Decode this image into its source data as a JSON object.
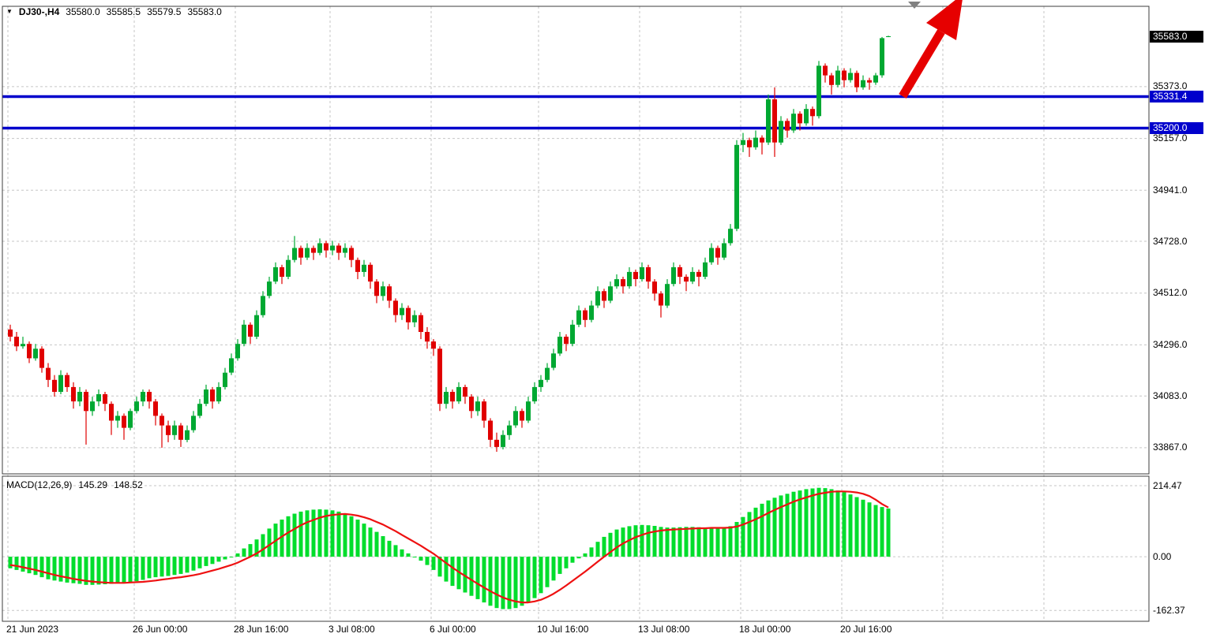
{
  "symbol_bar": {
    "display": "DJ30-,H4",
    "symbol": "DJ30-",
    "timeframe": "H4",
    "open": "35580.0",
    "high": "35585.5",
    "low": "35579.5",
    "close": "35583.0"
  },
  "price_axis": {
    "ticks": [
      35373.0,
      35157.0,
      34941.0,
      34728.0,
      34512.0,
      34296.0,
      34083.0,
      33867.0
    ],
    "current_price": 35583.0,
    "levels": [
      35331.4,
      35200.0
    ]
  },
  "macd_panel": {
    "label": "MACD(12,26,9)",
    "macd_value": "145.29",
    "signal_value": "148.52",
    "ticks": [
      214.47,
      0.0,
      -162.37
    ]
  },
  "time_axis": {
    "ticks": [
      {
        "label": "21 Jun 2023",
        "index": 0
      },
      {
        "label": "26 Jun 00:00",
        "index": 20
      },
      {
        "label": "28 Jun 16:00",
        "index": 36
      },
      {
        "label": "3 Jul 08:00",
        "index": 51
      },
      {
        "label": "6 Jul 00:00",
        "index": 67
      },
      {
        "label": "10 Jul 16:00",
        "index": 84
      },
      {
        "label": "13 Jul 08:00",
        "index": 100
      },
      {
        "label": "18 Jul 00:00",
        "index": 116
      },
      {
        "label": "20 Jul 16:00",
        "index": 132
      },
      {
        "label": "",
        "index": 148
      },
      {
        "label": "",
        "index": 164
      }
    ]
  },
  "colors": {
    "background": "#FFFFFF",
    "grid": "#C6C6C6",
    "frame": "#3C3C3C",
    "bull": "#00A832",
    "bear": "#E00000",
    "histogram": "#00DD2C",
    "signal": "#EE1111",
    "level": "#0000CC",
    "current_bg": "#000000",
    "arrow": "#E60000",
    "marker": "#808080",
    "text": "#000000"
  },
  "chart_data": {
    "type": "candlestick",
    "title": "DJ30-,H4",
    "symbol": "DJ30-",
    "timeframe": "H4",
    "current_price": 35583.0,
    "ohlc_current": {
      "open": 35580.0,
      "high": 35585.5,
      "low": 35579.5,
      "close": 35583.0
    },
    "price_ylim": [
      33758,
      35708
    ],
    "macd_ylim": [
      -195,
      243
    ],
    "hlines": [
      35331.4,
      35200.0
    ],
    "annotations": {
      "trend_arrow": "up-right red arrow at latest candles"
    },
    "candles": [
      [
        34360,
        34380,
        34310,
        34330
      ],
      [
        34330,
        34350,
        34270,
        34290
      ],
      [
        34290,
        34330,
        34280,
        34300
      ],
      [
        34300,
        34310,
        34220,
        34240
      ],
      [
        34240,
        34300,
        34230,
        34280
      ],
      [
        34280,
        34290,
        34180,
        34200
      ],
      [
        34200,
        34220,
        34120,
        34150
      ],
      [
        34150,
        34170,
        34080,
        34100
      ],
      [
        34100,
        34190,
        34090,
        34170
      ],
      [
        34170,
        34180,
        34100,
        34120
      ],
      [
        34120,
        34140,
        34030,
        34060
      ],
      [
        34060,
        34120,
        34040,
        34100
      ],
      [
        34100,
        34110,
        33880,
        34020
      ],
      [
        34020,
        34080,
        34000,
        34060
      ],
      [
        34060,
        34110,
        34040,
        34090
      ],
      [
        34090,
        34100,
        34020,
        34050
      ],
      [
        34050,
        34060,
        33920,
        33980
      ],
      [
        33980,
        34020,
        33950,
        34000
      ],
      [
        34000,
        34010,
        33900,
        33950
      ],
      [
        33950,
        34030,
        33940,
        34020
      ],
      [
        34020,
        34080,
        34010,
        34060
      ],
      [
        34060,
        34110,
        34040,
        34100
      ],
      [
        34100,
        34110,
        34030,
        34060
      ],
      [
        34060,
        34070,
        33960,
        34000
      ],
      [
        34000,
        34010,
        33867,
        33960
      ],
      [
        33960,
        33980,
        33890,
        33920
      ],
      [
        33920,
        33980,
        33900,
        33960
      ],
      [
        33960,
        33970,
        33870,
        33900
      ],
      [
        33900,
        33960,
        33890,
        33940
      ],
      [
        33940,
        34020,
        33930,
        34000
      ],
      [
        34000,
        34070,
        33990,
        34050
      ],
      [
        34050,
        34130,
        34040,
        34110
      ],
      [
        34110,
        34120,
        34030,
        34060
      ],
      [
        34060,
        34140,
        34050,
        34120
      ],
      [
        34120,
        34200,
        34110,
        34180
      ],
      [
        34180,
        34260,
        34170,
        34240
      ],
      [
        34240,
        34320,
        34230,
        34300
      ],
      [
        34300,
        34400,
        34290,
        34380
      ],
      [
        34380,
        34390,
        34300,
        34330
      ],
      [
        34330,
        34440,
        34320,
        34420
      ],
      [
        34420,
        34520,
        34410,
        34500
      ],
      [
        34500,
        34580,
        34490,
        34560
      ],
      [
        34560,
        34640,
        34550,
        34620
      ],
      [
        34620,
        34630,
        34550,
        34580
      ],
      [
        34580,
        34670,
        34570,
        34650
      ],
      [
        34650,
        34750,
        34640,
        34700
      ],
      [
        34700,
        34710,
        34630,
        34660
      ],
      [
        34660,
        34720,
        34650,
        34700
      ],
      [
        34700,
        34710,
        34650,
        34680
      ],
      [
        34680,
        34740,
        34670,
        34720
      ],
      [
        34720,
        34730,
        34660,
        34690
      ],
      [
        34690,
        34730,
        34670,
        34710
      ],
      [
        34710,
        34720,
        34650,
        34680
      ],
      [
        34680,
        34720,
        34660,
        34700
      ],
      [
        34700,
        34710,
        34620,
        34650
      ],
      [
        34650,
        34660,
        34570,
        34600
      ],
      [
        34600,
        34650,
        34580,
        34630
      ],
      [
        34630,
        34640,
        34530,
        34560
      ],
      [
        34560,
        34570,
        34470,
        34500
      ],
      [
        34500,
        34560,
        34480,
        34540
      ],
      [
        34540,
        34550,
        34450,
        34480
      ],
      [
        34480,
        34490,
        34390,
        34420
      ],
      [
        34420,
        34470,
        34400,
        34450
      ],
      [
        34450,
        34460,
        34360,
        34390
      ],
      [
        34390,
        34440,
        34370,
        34420
      ],
      [
        34420,
        34430,
        34320,
        34350
      ],
      [
        34350,
        34370,
        34280,
        34310
      ],
      [
        34310,
        34320,
        34250,
        34280
      ],
      [
        34280,
        34290,
        34020,
        34050
      ],
      [
        34050,
        34120,
        34030,
        34100
      ],
      [
        34100,
        34110,
        34030,
        34060
      ],
      [
        34060,
        34140,
        34050,
        34120
      ],
      [
        34120,
        34130,
        34050,
        34080
      ],
      [
        34080,
        34090,
        33990,
        34020
      ],
      [
        34020,
        34080,
        34000,
        34060
      ],
      [
        34060,
        34070,
        33950,
        33980
      ],
      [
        33980,
        33990,
        33870,
        33900
      ],
      [
        33900,
        33930,
        33850,
        33870
      ],
      [
        33870,
        33940,
        33860,
        33920
      ],
      [
        33920,
        33980,
        33900,
        33960
      ],
      [
        33960,
        34040,
        33950,
        34020
      ],
      [
        34020,
        34030,
        33950,
        33980
      ],
      [
        33980,
        34080,
        33970,
        34060
      ],
      [
        34060,
        34140,
        34050,
        34120
      ],
      [
        34120,
        34170,
        34100,
        34150
      ],
      [
        34150,
        34220,
        34140,
        34200
      ],
      [
        34200,
        34280,
        34190,
        34260
      ],
      [
        34260,
        34350,
        34250,
        34330
      ],
      [
        34330,
        34340,
        34270,
        34300
      ],
      [
        34300,
        34400,
        34290,
        34380
      ],
      [
        34380,
        34460,
        34370,
        34440
      ],
      [
        34440,
        34450,
        34370,
        34400
      ],
      [
        34400,
        34480,
        34390,
        34460
      ],
      [
        34460,
        34540,
        34450,
        34520
      ],
      [
        34520,
        34530,
        34450,
        34480
      ],
      [
        34480,
        34560,
        34470,
        34540
      ],
      [
        34540,
        34590,
        34530,
        34570
      ],
      [
        34570,
        34580,
        34510,
        34540
      ],
      [
        34540,
        34620,
        34530,
        34600
      ],
      [
        34600,
        34610,
        34540,
        34570
      ],
      [
        34570,
        34640,
        34560,
        34620
      ],
      [
        34620,
        34630,
        34530,
        34560
      ],
      [
        34560,
        34570,
        34480,
        34510
      ],
      [
        34510,
        34520,
        34410,
        34460
      ],
      [
        34460,
        34570,
        34450,
        34550
      ],
      [
        34550,
        34640,
        34540,
        34620
      ],
      [
        34620,
        34630,
        34550,
        34580
      ],
      [
        34580,
        34590,
        34520,
        34560
      ],
      [
        34560,
        34620,
        34550,
        34600
      ],
      [
        34600,
        34610,
        34540,
        34580
      ],
      [
        34580,
        34660,
        34570,
        34640
      ],
      [
        34640,
        34720,
        34630,
        34700
      ],
      [
        34700,
        34710,
        34630,
        34660
      ],
      [
        34660,
        34740,
        34650,
        34720
      ],
      [
        34720,
        34800,
        34710,
        34780
      ],
      [
        34780,
        35150,
        34770,
        35130
      ],
      [
        35130,
        35180,
        35100,
        35150
      ],
      [
        35150,
        35160,
        35080,
        35120
      ],
      [
        35120,
        35190,
        35110,
        35160
      ],
      [
        35160,
        35170,
        35090,
        35140
      ],
      [
        35140,
        35340,
        35130,
        35320
      ],
      [
        35320,
        35370,
        35080,
        35140
      ],
      [
        35140,
        35250,
        35130,
        35230
      ],
      [
        35230,
        35240,
        35160,
        35190
      ],
      [
        35190,
        35280,
        35180,
        35260
      ],
      [
        35260,
        35270,
        35190,
        35220
      ],
      [
        35220,
        35300,
        35210,
        35280
      ],
      [
        35280,
        35290,
        35210,
        35250
      ],
      [
        35250,
        35480,
        35240,
        35460
      ],
      [
        35460,
        35470,
        35390,
        35420
      ],
      [
        35420,
        35430,
        35340,
        35380
      ],
      [
        35380,
        35460,
        35370,
        35440
      ],
      [
        35440,
        35450,
        35370,
        35400
      ],
      [
        35400,
        35450,
        35390,
        35430
      ],
      [
        35430,
        35440,
        35350,
        35370
      ],
      [
        35370,
        35420,
        35360,
        35400
      ],
      [
        35400,
        35410,
        35360,
        35390
      ],
      [
        35390,
        35430,
        35380,
        35420
      ],
      [
        35420,
        35580,
        35410,
        35575
      ],
      [
        35580,
        35585.5,
        35579.5,
        35583
      ]
    ],
    "macd": {
      "params": "12,26,9",
      "histogram": [
        -35,
        -40,
        -45,
        -50,
        -55,
        -62,
        -68,
        -72,
        -75,
        -78,
        -80,
        -82,
        -85,
        -85,
        -84,
        -83,
        -82,
        -80,
        -78,
        -76,
        -74,
        -70,
        -65,
        -62,
        -60,
        -58,
        -55,
        -52,
        -48,
        -42,
        -35,
        -28,
        -22,
        -15,
        -8,
        -2,
        10,
        25,
        38,
        52,
        68,
        85,
        100,
        112,
        122,
        130,
        136,
        140,
        142,
        143,
        142,
        140,
        136,
        130,
        122,
        112,
        100,
        88,
        75,
        62,
        48,
        35,
        22,
        10,
        0,
        -12,
        -25,
        -40,
        -60,
        -75,
        -88,
        -98,
        -108,
        -118,
        -128,
        -138,
        -148,
        -155,
        -158,
        -158,
        -155,
        -148,
        -138,
        -125,
        -110,
        -92,
        -72,
        -52,
        -35,
        -18,
        -5,
        10,
        28,
        45,
        60,
        72,
        82,
        88,
        92,
        95,
        96,
        95,
        93,
        90,
        88,
        88,
        89,
        90,
        90,
        89,
        88,
        88,
        87,
        88,
        92,
        105,
        120,
        135,
        148,
        160,
        170,
        178,
        185,
        190,
        196,
        200,
        204,
        206,
        208,
        207,
        204,
        200,
        195,
        188,
        180,
        172,
        164,
        156,
        150,
        145.29
      ],
      "signal": [
        -25,
        -28,
        -32,
        -36,
        -40,
        -45,
        -50,
        -55,
        -59,
        -63,
        -67,
        -70,
        -73,
        -75,
        -77,
        -78,
        -79,
        -79,
        -79,
        -78,
        -77,
        -76,
        -74,
        -72,
        -69,
        -67,
        -64,
        -62,
        -59,
        -56,
        -52,
        -47,
        -42,
        -37,
        -31,
        -25,
        -18,
        -9,
        0,
        10,
        22,
        35,
        48,
        61,
        73,
        84,
        95,
        104,
        111,
        118,
        123,
        126,
        128,
        129,
        127,
        124,
        119,
        113,
        105,
        97,
        87,
        77,
        66,
        55,
        44,
        33,
        21,
        9,
        -5,
        -19,
        -33,
        -46,
        -58,
        -70,
        -82,
        -93,
        -104,
        -114,
        -123,
        -130,
        -135,
        -138,
        -138,
        -135,
        -130,
        -122,
        -112,
        -100,
        -87,
        -73,
        -59,
        -45,
        -30,
        -15,
        0,
        14,
        28,
        40,
        50,
        59,
        66,
        72,
        76,
        79,
        81,
        82,
        83,
        84,
        85,
        86,
        86,
        87,
        87,
        87,
        88,
        91,
        97,
        105,
        113,
        122,
        132,
        141,
        150,
        158,
        166,
        173,
        179,
        185,
        190,
        193,
        196,
        197,
        197,
        196,
        194,
        190,
        183,
        172,
        159,
        148.52
      ]
    }
  }
}
